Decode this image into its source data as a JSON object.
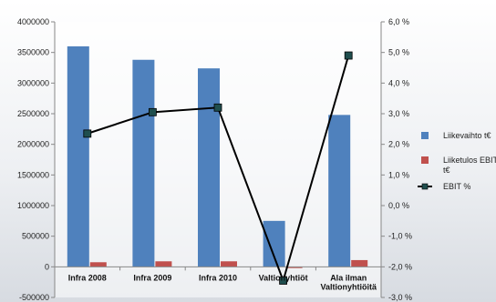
{
  "chart_data": {
    "type": "bar",
    "categories": [
      [
        "Infra 2008"
      ],
      [
        "Infra 2009"
      ],
      [
        "Infra 2010"
      ],
      [
        "Valtionyhtiöt"
      ],
      [
        "Ala ilman",
        "Valtionyhtiöitä"
      ]
    ],
    "series": [
      {
        "name": "Liikevaihto t€",
        "type": "bar",
        "axis": "left",
        "color": "#4f81bd",
        "values": [
          3600000,
          3380000,
          3240000,
          750000,
          2480000
        ]
      },
      {
        "name": "Liiketulos EBIT t€",
        "type": "bar",
        "axis": "left",
        "color": "#c0504d",
        "values": [
          75000,
          90000,
          90000,
          -20000,
          110000
        ]
      },
      {
        "name": "EBIT %",
        "type": "line",
        "axis": "right",
        "color": "#000000",
        "marker_color": "#1f4e4e",
        "values": [
          2.35,
          3.05,
          3.2,
          -2.45,
          4.9
        ]
      }
    ],
    "ylim_left": [
      -500000,
      4000000
    ],
    "ylim_right": [
      -3.0,
      6.0
    ],
    "left_ticks": [
      "-500000",
      "0",
      "500000",
      "1000000",
      "1500000",
      "2000000",
      "2500000",
      "3000000",
      "3500000",
      "4000000"
    ],
    "right_ticks": [
      "-3,0 %",
      "-2,0 %",
      "-1,0 %",
      "0,0 %",
      "1,0 %",
      "2,0 %",
      "3,0 %",
      "4,0 %",
      "5,0 %",
      "6,0 %"
    ],
    "legend_labels": [
      [
        "Liikevaihto t€"
      ],
      [
        "Liiketulos EBIT",
        "t€"
      ],
      [
        "EBIT %"
      ]
    ],
    "legend_position": "right",
    "grid": false
  }
}
